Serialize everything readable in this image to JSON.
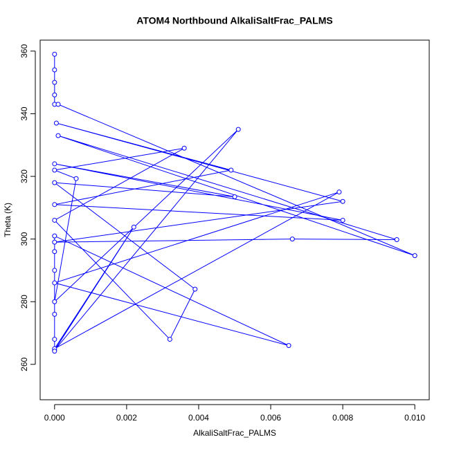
{
  "chart_data": {
    "type": "line-points",
    "title": "ATOM4 Northbound AlkaliSaltFrac_PALMS",
    "x_label": "AlkaliSaltFrac_PALMS",
    "y_label": "Theta (K)",
    "color": "#0000ff",
    "xlim": [
      -0.0004,
      0.0104
    ],
    "ylim": [
      248.7,
      363.5
    ],
    "xticks": [
      {
        "value": 0,
        "label": "0.000"
      },
      {
        "value": 0.002,
        "label": "0.002"
      },
      {
        "value": 0.004,
        "label": "0.004"
      },
      {
        "value": 0.006,
        "label": "0.006"
      },
      {
        "value": 0.008,
        "label": "0.008"
      },
      {
        "value": 0.01,
        "label": "0.010"
      }
    ],
    "yticks": [
      260,
      280,
      300,
      320,
      340,
      360
    ],
    "x": [
      0,
      0,
      0,
      0,
      0,
      0.0001,
      0.01,
      0.0001,
      0.0095,
      0.0066,
      0,
      0.008,
      5e-05,
      0.0049,
      0,
      0.008,
      0,
      0.005,
      0,
      0.0039,
      0.0032,
      0,
      0.0036,
      0,
      0.0006,
      0,
      0.0051,
      0,
      0.0022,
      0,
      0.0079,
      0,
      0.0065,
      0,
      0,
      0,
      0,
      0,
      0
    ],
    "y": [
      359,
      354,
      350,
      346,
      343,
      343,
      294.7,
      333,
      299.8,
      300,
      299,
      312,
      337,
      322,
      311,
      306,
      324,
      313.5,
      318,
      284,
      268,
      306,
      329,
      322,
      319.3,
      280,
      335,
      264.5,
      303.8,
      265,
      315,
      286,
      266,
      301,
      296,
      290,
      276,
      268,
      264.2
    ]
  }
}
